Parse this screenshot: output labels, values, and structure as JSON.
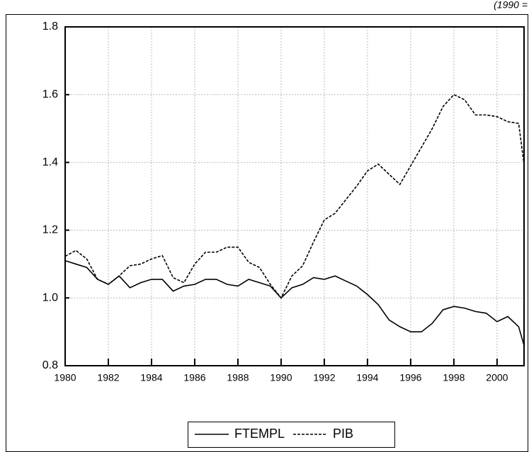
{
  "chart_data": {
    "type": "line",
    "subtitle": "(1990 =",
    "x": [
      1980,
      1980.5,
      1981,
      1981.5,
      1982,
      1982.5,
      1983,
      1983.5,
      1984,
      1984.5,
      1985,
      1985.5,
      1986,
      1986.5,
      1987,
      1987.5,
      1988,
      1988.5,
      1989,
      1989.5,
      1990,
      1990.5,
      1991,
      1991.5,
      1992,
      1992.5,
      1993,
      1993.5,
      1994,
      1994.5,
      1995,
      1995.5,
      1996,
      1996.5,
      1997,
      1997.5,
      1998,
      1998.5,
      1999,
      1999.5,
      2000,
      2000.5,
      2001,
      2001.25
    ],
    "series": [
      {
        "name": "FTEMPL",
        "color": "#000000",
        "dash": "solid",
        "values": [
          1.11,
          1.1,
          1.09,
          1.055,
          1.04,
          1.065,
          1.03,
          1.045,
          1.055,
          1.055,
          1.02,
          1.035,
          1.04,
          1.055,
          1.055,
          1.04,
          1.035,
          1.055,
          1.045,
          1.035,
          1.0,
          1.03,
          1.04,
          1.06,
          1.055,
          1.065,
          1.05,
          1.035,
          1.01,
          0.98,
          0.935,
          0.915,
          0.9,
          0.9,
          0.925,
          0.965,
          0.975,
          0.97,
          0.96,
          0.955,
          0.93,
          0.945,
          0.915,
          0.86
        ]
      },
      {
        "name": "PIB",
        "color": "#000000",
        "dash": "dashed",
        "values": [
          1.123,
          1.14,
          1.115,
          1.055,
          1.04,
          1.065,
          1.095,
          1.1,
          1.115,
          1.125,
          1.06,
          1.045,
          1.1,
          1.135,
          1.135,
          1.15,
          1.15,
          1.105,
          1.09,
          1.04,
          1.0,
          1.065,
          1.095,
          1.165,
          1.23,
          1.25,
          1.29,
          1.33,
          1.375,
          1.395,
          1.365,
          1.335,
          1.39,
          1.445,
          1.5,
          1.565,
          1.6,
          1.585,
          1.54,
          1.54,
          1.535,
          1.52,
          1.515,
          1.395
        ]
      }
    ],
    "xlim": [
      1980,
      2001.25
    ],
    "xticks": [
      1980,
      1982,
      1984,
      1986,
      1988,
      1990,
      1992,
      1994,
      1996,
      1998,
      2000
    ],
    "ylim": [
      0.8,
      1.8
    ],
    "yticks": [
      {
        "value": 0.8,
        "label": "0.8"
      },
      {
        "value": 1,
        "label": "1.0"
      },
      1.2,
      1.4,
      1.6,
      1.8
    ],
    "grid": true,
    "legend": "bottom"
  }
}
